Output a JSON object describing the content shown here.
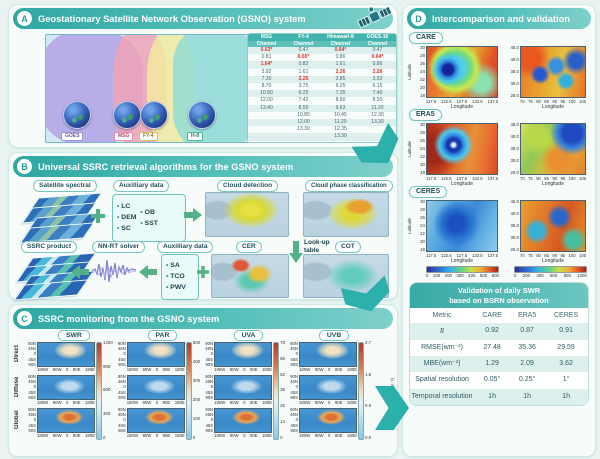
{
  "colors": {
    "accent_teal": "#2fa7a2",
    "panel_border": "#cfe9e6",
    "highlight_red": "#e0322a",
    "flow_green": "#52b188",
    "connector_teal": "#2cb0ab"
  },
  "icons": {
    "satellite": "satellite-icon",
    "plus": "plus-icon",
    "arrow_right": "arrow-right-icon",
    "arrow_left": "arrow-left-icon",
    "arrow_down": "arrow-down-icon",
    "waveform": "waveform-icon",
    "globe": "globe-icon"
  },
  "panelA": {
    "badge": "A",
    "title": "Geostationary Satellite Network Observation (GSNO) system",
    "globes": [
      {
        "name": "GOES"
      },
      {
        "name": "MSG"
      },
      {
        "name": "FY-4"
      },
      {
        "name": "H-8"
      }
    ],
    "table": {
      "columns": [
        "MSG",
        "FY-4",
        "Himawari-8",
        "GOES-16"
      ],
      "subheader": "Channel",
      "rows": [
        [
          {
            "v": "0.63*",
            "r": 1
          },
          {
            "v": "0.47"
          },
          {
            "v": "0.64*",
            "r": 1
          },
          {
            "v": "0.47"
          }
        ],
        [
          {
            "v": "0.81"
          },
          {
            "v": "0.65*",
            "r": 1
          },
          {
            "v": "0.86"
          },
          {
            "v": "0.64*",
            "r": 1
          }
        ],
        [
          {
            "v": "1.64*",
            "r": 1
          },
          {
            "v": "0.82"
          },
          {
            "v": "1.61"
          },
          {
            "v": "0.86"
          }
        ],
        [
          {
            "v": "3.92"
          },
          {
            "v": "1.61"
          },
          {
            "v": "2.26",
            "r": 1
          },
          {
            "v": "2.26",
            "r": 1
          }
        ],
        [
          {
            "v": "7.35"
          },
          {
            "v": "2.25",
            "r": 1
          },
          {
            "v": "3.85"
          },
          {
            "v": "3.93"
          }
        ],
        [
          {
            "v": "8.70"
          },
          {
            "v": "3.75"
          },
          {
            "v": "6.25"
          },
          {
            "v": "6.15"
          }
        ],
        [
          {
            "v": "10.80"
          },
          {
            "v": "6.25"
          },
          {
            "v": "7.35"
          },
          {
            "v": "7.40"
          }
        ],
        [
          {
            "v": "12.00"
          },
          {
            "v": "7.42"
          },
          {
            "v": "8.60"
          },
          {
            "v": "8.50"
          }
        ],
        [
          {
            "v": "13.40"
          },
          {
            "v": "8.55"
          },
          {
            "v": "9.63"
          },
          {
            "v": "11.20"
          }
        ],
        [
          {
            "v": ""
          },
          {
            "v": "10.80"
          },
          {
            "v": "10.45"
          },
          {
            "v": "12.30"
          }
        ],
        [
          {
            "v": ""
          },
          {
            "v": "12.00"
          },
          {
            "v": "11.20"
          },
          {
            "v": "13.30"
          }
        ],
        [
          {
            "v": ""
          },
          {
            "v": "13.30"
          },
          {
            "v": "12.35"
          },
          {
            "v": ""
          }
        ],
        [
          {
            "v": ""
          },
          {
            "v": ""
          },
          {
            "v": "13.30"
          },
          {
            "v": ""
          }
        ]
      ]
    }
  },
  "panelB": {
    "badge": "B",
    "title": "Universal SSRC retrieval algorithms for the GSNO system",
    "labels": {
      "satellite_spectral": "Satellite spectral",
      "aux1": "Auxilliary data",
      "cloud_detection": "Cloud detection",
      "cloud_phase": "Cloud phase classification",
      "ssrc_product": "SSRC product",
      "nn_rt": "NN-RT solver",
      "aux2": "Auxilliary data",
      "cer": "CER",
      "cot": "COT",
      "lookup": "Look-up table"
    },
    "aux1_col1": [
      "LC",
      "DEM",
      "SC"
    ],
    "aux1_col2": [
      "OB",
      "SST"
    ],
    "aux2_items": [
      "SA",
      "TCO",
      "PWV"
    ]
  },
  "panelC": {
    "badge": "C",
    "title": "SSRC monitoring from the GSNO system",
    "columns": [
      "SWR",
      "PAR",
      "UVA",
      "UVB"
    ],
    "row_labels": [
      "Direct",
      "Diffuse",
      "Global"
    ],
    "yticks": [
      "90N",
      "45N",
      "0",
      "45S",
      "90S"
    ],
    "xticks": [
      "180W",
      "90W",
      "0",
      "90E",
      "180E"
    ],
    "colorbars": [
      {
        "ticks": [
          "1200",
          "900",
          "600",
          "300",
          "0"
        ]
      },
      {
        "ticks": [
          "500",
          "400",
          "300",
          "200",
          "100",
          "0"
        ]
      },
      {
        "ticks": [
          "78",
          "65",
          "52",
          "39",
          "26",
          "13",
          "0"
        ]
      },
      {
        "ticks": [
          "2.7",
          "1.8",
          "0.9",
          "0.0"
        ]
      }
    ],
    "unit": "(W·m⁻²)"
  },
  "panelD": {
    "badge": "D",
    "title": "Intercomparison and validation",
    "sections": [
      {
        "label": "CARE"
      },
      {
        "label": "ERA5"
      },
      {
        "label": "CERES"
      }
    ],
    "left_map": {
      "ylabel": "Latitude",
      "xlabel": "Longitude",
      "yticks": [
        "30",
        "28",
        "26",
        "24",
        "22",
        "20",
        "18"
      ],
      "xticks": [
        "117.5",
        "122.5",
        "127.5",
        "132.5",
        "137.5"
      ]
    },
    "right_map": {
      "xlabel": "Longitude",
      "yticks": [
        "45.0",
        "40.0",
        "35.0",
        "30.0",
        "25.0"
      ],
      "xticks": [
        "70",
        "75",
        "80",
        "85",
        "90",
        "95",
        "100",
        "105"
      ]
    },
    "colorbar_left_ticks": [
      "0",
      "100",
      "200",
      "300",
      "400",
      "500",
      "600"
    ],
    "colorbar_right_ticks": [
      "0",
      "200",
      "400",
      "600",
      "800",
      "1000"
    ],
    "table": {
      "title_line1": "Validation of daily SWR",
      "title_line2": "based on BSRN observation",
      "columns": [
        "Metric",
        "CARE",
        "ERA5",
        "CERES"
      ],
      "rows": [
        {
          "metric": "R",
          "italic": true,
          "values": [
            "0.92",
            "0.87",
            "0.91"
          ]
        },
        {
          "metric": "RMSE(wm⁻²)",
          "values": [
            "27.48",
            "35.36",
            "29.59"
          ]
        },
        {
          "metric": "MBE(wm⁻²)",
          "values": [
            "1.29",
            "2.09",
            "3.62"
          ]
        },
        {
          "metric": "Spatial resolution",
          "values": [
            "0.05°",
            "0.25°",
            "1°"
          ]
        },
        {
          "metric": "Temporal resolution",
          "values": [
            "1h",
            "1h",
            "1h"
          ]
        }
      ]
    }
  }
}
